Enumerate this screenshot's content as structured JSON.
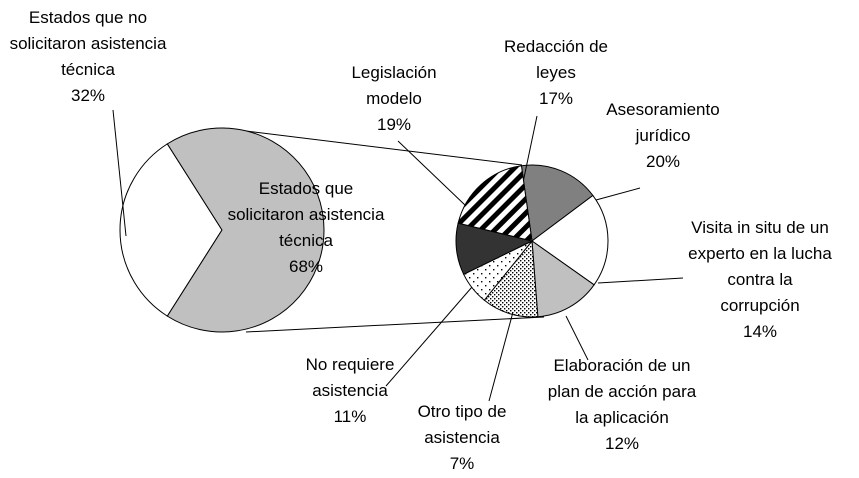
{
  "chart_data": [
    {
      "type": "pie",
      "categories": [
        "Estados que no solicitaron asistencia técnica",
        "Estados que solicitaron asistencia técnica"
      ],
      "values": [
        32,
        68
      ],
      "value_labels": [
        "32%",
        "68%"
      ],
      "colors": [
        "#ffffff",
        "#c0c0c0"
      ]
    },
    {
      "type": "pie",
      "categories": [
        "Redacción de leyes",
        "Asesoramiento jurídico",
        "Visita in situ de un experto en la lucha contra la corrupción",
        "Elaboración de un plan de acción para la aplicación",
        "Otro tipo de asistencia",
        "No requiere asistencia",
        "Legislación modelo"
      ],
      "values": [
        17,
        20,
        14,
        12,
        7,
        11,
        19
      ],
      "value_labels": [
        "17%",
        "20%",
        "14%",
        "12%",
        "7%",
        "11%",
        "19%"
      ],
      "colors": [
        "#808080",
        "#ffffff",
        "#c0c0c0",
        "dots",
        "sparse-dots",
        "#333333",
        "diagonal-stripes"
      ]
    }
  ]
}
